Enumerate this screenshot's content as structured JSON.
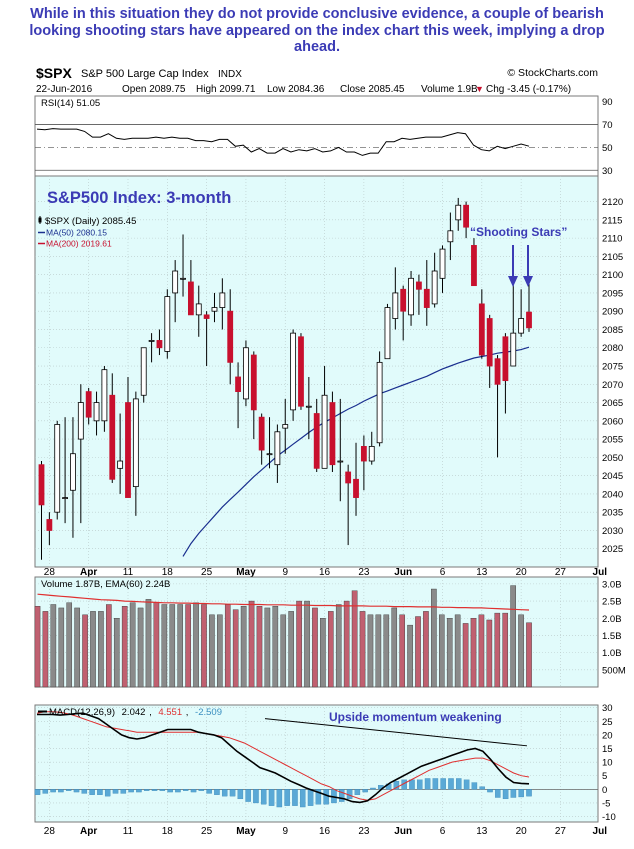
{
  "caption": "While in this situation they do not provide conclusive evidence, a couple of bearish looking shooting stars have appeared on the index chart this week, implying a drop ahead.",
  "header": {
    "symbol": "$SPX",
    "name": "S&P 500 Large Cap Index",
    "exchange": "INDX",
    "credit": "© StockCharts.com",
    "date": "22-Jun-2016",
    "open": "Open 2089.75",
    "high": "High 2099.71",
    "low": "Low 2084.36",
    "close": "Close 2085.45",
    "volume": "Volume 1.9B",
    "change": "Chg -3.45 (-0.17%)",
    "change_arrow": "▼"
  },
  "colors": {
    "panel_bg": "#e1fbfb",
    "grid": "#b8c8c8",
    "up": "#ffffff",
    "down": "#c8102e",
    "ma50": "#1a2f8f",
    "ma200": "#c8102e",
    "annotation": "#3b3bb5",
    "macd_line": "#000000",
    "signal_line": "#e03030",
    "histogram": "#5aa9d6",
    "volume_up": "#8a8a8a",
    "volume_down": "#c06070"
  },
  "chart_data": {
    "type": "candlestick",
    "title": "S&P500 Index: 3-month",
    "legend": [
      {
        "label": "$SPX (Daily) 2085.45",
        "color": "#000000",
        "icon": "candle-icon"
      },
      {
        "label": "MA(50) 2080.15",
        "color": "#1a2f8f",
        "icon": "line-icon"
      },
      {
        "label": "MA(200) 2019.61",
        "color": "#c8102e",
        "icon": "line-icon"
      }
    ],
    "annotations": {
      "price": "“Shooting Stars”",
      "macd": "Upside momentum weakening"
    },
    "x_labels": [
      "28",
      "Apr",
      "11",
      "18",
      "25",
      "May",
      "9",
      "16",
      "23",
      "Jun",
      "6",
      "13",
      "20",
      "27",
      "Jul"
    ],
    "bold_x_labels": [
      "Apr",
      "May",
      "Jun",
      "Jul"
    ],
    "price": {
      "ylim": [
        2020,
        2127
      ],
      "yticks": [
        2025,
        2030,
        2035,
        2040,
        2045,
        2050,
        2055,
        2060,
        2065,
        2070,
        2075,
        2080,
        2085,
        2090,
        2095,
        2100,
        2105,
        2110,
        2115,
        2120
      ],
      "candles": [
        {
          "d": "Mar 24",
          "o": 2048,
          "h": 2049,
          "l": 2022,
          "c": 2037
        },
        {
          "d": "Mar 28",
          "o": 2033,
          "h": 2035,
          "l": 2026,
          "c": 2030
        },
        {
          "d": "Mar 29",
          "o": 2035,
          "h": 2060,
          "l": 2033,
          "c": 2059
        },
        {
          "d": "Mar 30",
          "o": 2039,
          "h": 2061,
          "l": 2032,
          "c": 2039
        },
        {
          "d": "Mar 31",
          "o": 2041,
          "h": 2061,
          "l": 2028,
          "c": 2051
        },
        {
          "d": "Apr 1",
          "o": 2055,
          "h": 2070,
          "l": 2032,
          "c": 2065
        },
        {
          "d": "Apr 4",
          "o": 2068,
          "h": 2069,
          "l": 2059,
          "c": 2061
        },
        {
          "d": "Apr 5",
          "o": 2060,
          "h": 2068,
          "l": 2056,
          "c": 2065
        },
        {
          "d": "Apr 6",
          "o": 2060,
          "h": 2075,
          "l": 2057,
          "c": 2074
        },
        {
          "d": "Apr 7",
          "o": 2067,
          "h": 2073,
          "l": 2043,
          "c": 2044
        },
        {
          "d": "Apr 8",
          "o": 2047,
          "h": 2062,
          "l": 2040,
          "c": 2049
        },
        {
          "d": "Apr 11",
          "o": 2065,
          "h": 2072,
          "l": 2039,
          "c": 2039
        },
        {
          "d": "Apr 12",
          "o": 2042,
          "h": 2068,
          "l": 2034,
          "c": 2066
        },
        {
          "d": "Apr 13",
          "o": 2067,
          "h": 2080,
          "l": 2065,
          "c": 2080
        },
        {
          "d": "Apr 14",
          "o": 2082,
          "h": 2084,
          "l": 2076,
          "c": 2082
        },
        {
          "d": "Apr 15",
          "o": 2082,
          "h": 2085,
          "l": 2078,
          "c": 2080
        },
        {
          "d": "Apr 18",
          "o": 2079,
          "h": 2096,
          "l": 2077,
          "c": 2094
        },
        {
          "d": "Apr 19",
          "o": 2095,
          "h": 2104,
          "l": 2087,
          "c": 2101
        },
        {
          "d": "Apr 20",
          "o": 2099,
          "h": 2111,
          "l": 2094,
          "c": 2099
        },
        {
          "d": "Apr 21",
          "o": 2098,
          "h": 2104,
          "l": 2089,
          "c": 2089
        },
        {
          "d": "Apr 22",
          "o": 2089,
          "h": 2097,
          "l": 2083,
          "c": 2092
        },
        {
          "d": "Apr 25",
          "o": 2089,
          "h": 2090,
          "l": 2075,
          "c": 2088
        },
        {
          "d": "Apr 26",
          "o": 2090,
          "h": 2095,
          "l": 2087,
          "c": 2091
        },
        {
          "d": "Apr 27",
          "o": 2091,
          "h": 2099,
          "l": 2085,
          "c": 2095
        },
        {
          "d": "Apr 28",
          "o": 2090,
          "h": 2096,
          "l": 2070,
          "c": 2076
        },
        {
          "d": "Apr 29",
          "o": 2072,
          "h": 2076,
          "l": 2058,
          "c": 2068
        },
        {
          "d": "May 2",
          "o": 2066,
          "h": 2082,
          "l": 2064,
          "c": 2080
        },
        {
          "d": "May 3",
          "o": 2078,
          "h": 2079,
          "l": 2055,
          "c": 2063
        },
        {
          "d": "May 4",
          "o": 2061,
          "h": 2062,
          "l": 2048,
          "c": 2052
        },
        {
          "d": "May 5",
          "o": 2051,
          "h": 2061,
          "l": 2047,
          "c": 2051
        },
        {
          "d": "May 6",
          "o": 2048,
          "h": 2059,
          "l": 2043,
          "c": 2057
        },
        {
          "d": "May 9",
          "o": 2058,
          "h": 2066,
          "l": 2051,
          "c": 2059
        },
        {
          "d": "May 10",
          "o": 2063,
          "h": 2085,
          "l": 2060,
          "c": 2084
        },
        {
          "d": "May 11",
          "o": 2083,
          "h": 2084,
          "l": 2063,
          "c": 2064
        },
        {
          "d": "May 12",
          "o": 2064,
          "h": 2072,
          "l": 2055,
          "c": 2064
        },
        {
          "d": "May 13",
          "o": 2062,
          "h": 2066,
          "l": 2046,
          "c": 2047
        },
        {
          "d": "May 16",
          "o": 2047,
          "h": 2075,
          "l": 2047,
          "c": 2067
        },
        {
          "d": "May 17",
          "o": 2065,
          "h": 2068,
          "l": 2046,
          "c": 2048
        },
        {
          "d": "May 18",
          "o": 2049,
          "h": 2066,
          "l": 2038,
          "c": 2049
        },
        {
          "d": "May 19",
          "o": 2046,
          "h": 2048,
          "l": 2026,
          "c": 2043
        },
        {
          "d": "May 20",
          "o": 2044,
          "h": 2054,
          "l": 2034,
          "c": 2039
        },
        {
          "d": "May 23",
          "o": 2053,
          "h": 2056,
          "l": 2041,
          "c": 2049
        },
        {
          "d": "May 24",
          "o": 2049,
          "h": 2057,
          "l": 2048,
          "c": 2053
        },
        {
          "d": "May 25",
          "o": 2054,
          "h": 2079,
          "l": 2053,
          "c": 2076
        },
        {
          "d": "May 26",
          "o": 2077,
          "h": 2092,
          "l": 2077,
          "c": 2091
        },
        {
          "d": "May 27",
          "o": 2088,
          "h": 2102,
          "l": 2085,
          "c": 2095
        },
        {
          "d": "May 31",
          "o": 2096,
          "h": 2097,
          "l": 2082,
          "c": 2090
        },
        {
          "d": "Jun 1",
          "o": 2089,
          "h": 2101,
          "l": 2086,
          "c": 2099
        },
        {
          "d": "Jun 2",
          "o": 2098,
          "h": 2100,
          "l": 2089,
          "c": 2096
        },
        {
          "d": "Jun 3",
          "o": 2096,
          "h": 2104,
          "l": 2086,
          "c": 2091
        },
        {
          "d": "Jun 6",
          "o": 2092,
          "h": 2106,
          "l": 2091,
          "c": 2101
        },
        {
          "d": "Jun 7",
          "o": 2099,
          "h": 2108,
          "l": 2095,
          "c": 2107
        },
        {
          "d": "Jun 8",
          "o": 2109,
          "h": 2117,
          "l": 2104,
          "c": 2112
        },
        {
          "d": "Jun 9",
          "o": 2115,
          "h": 2121,
          "l": 2112,
          "c": 2119
        },
        {
          "d": "Jun 10",
          "o": 2119,
          "h": 2120,
          "l": 2110,
          "c": 2113
        },
        {
          "d": "Jun 13",
          "o": 2108,
          "h": 2110,
          "l": 2098,
          "c": 2097
        },
        {
          "d": "Jun 14",
          "o": 2092,
          "h": 2096,
          "l": 2077,
          "c": 2078
        },
        {
          "d": "Jun 15",
          "o": 2088,
          "h": 2089,
          "l": 2069,
          "c": 2075
        },
        {
          "d": "Jun 16",
          "o": 2077,
          "h": 2078,
          "l": 2050,
          "c": 2070
        },
        {
          "d": "Jun 17",
          "o": 2083,
          "h": 2084,
          "l": 2062,
          "c": 2071
        },
        {
          "d": "Jun 20",
          "o": 2075,
          "h": 2101,
          "l": 2075,
          "c": 2084
        },
        {
          "d": "Jun 21",
          "o": 2084,
          "h": 2096,
          "l": 2083,
          "c": 2088
        },
        {
          "d": "Jun 22",
          "o": 2089.75,
          "h": 2099.71,
          "l": 2084.36,
          "c": 2085.45
        }
      ],
      "ma50": [
        2022.9,
        2026.4,
        2029.2,
        2031.6,
        2034.0,
        2036.4,
        2038.5,
        2040.5,
        2042.6,
        2044.7,
        2046.6,
        2048.5,
        2050.4,
        2052.0,
        2053.6,
        2055.2,
        2056.8,
        2058.3,
        2059.6,
        2060.8,
        2062.0,
        2063.2,
        2064.2,
        2065.4,
        2066.4,
        2067.4,
        2068.2,
        2069.0,
        2069.8,
        2070.6,
        2071.4,
        2072.2,
        2073.2,
        2074.2,
        2075.0,
        2075.8,
        2076.5,
        2077.2,
        2077.6,
        2078.0,
        2078.5,
        2078.8,
        2079.1,
        2079.5,
        2080.15
      ],
      "ma50_start": 18
    },
    "rsi": {
      "label": "RSI(14) 51.05",
      "ylim": [
        25,
        95
      ],
      "yticks": [
        30,
        50,
        70,
        90
      ],
      "values": [
        66.0,
        65.5,
        66.5,
        66.0,
        66.0,
        66.0,
        64.0,
        59.0,
        59.0,
        62.0,
        58.0,
        57.0,
        58.0,
        58.0,
        58.0,
        59.0,
        58.0,
        59.0,
        58.0,
        58.0,
        56.0,
        56.0,
        55.0,
        57.0,
        57.0,
        51.0,
        52.0,
        46.0,
        49.0,
        45.0,
        45.0,
        49.0,
        46.0,
        48.0,
        47.0,
        49.0,
        46.0,
        47.0,
        50.0,
        46.0,
        46.0,
        43.0,
        45.0,
        45.0,
        55.0,
        55.0,
        58.0,
        57.0,
        58.0,
        59.0,
        59.0,
        59.0,
        61.0,
        63.0,
        62.0,
        52.0,
        48.0,
        47.0,
        51.0,
        49.0,
        51.0,
        53.0,
        51.05
      ]
    },
    "volume": {
      "label": "Volume 1.87B, EMA(60) 2.24B",
      "units": "billions",
      "ylim": [
        0,
        3.2
      ],
      "yticks": [
        "3.0B",
        "2.5B",
        "2.0B",
        "1.5B",
        "1.0B",
        "500M"
      ],
      "ytick_values": [
        3.0,
        2.5,
        2.0,
        1.5,
        1.0,
        0.5
      ],
      "values": [
        2.35,
        2.2,
        2.4,
        2.3,
        2.45,
        2.3,
        2.1,
        2.2,
        2.2,
        2.4,
        2.0,
        2.35,
        2.45,
        2.3,
        2.55,
        2.45,
        2.4,
        2.4,
        2.4,
        2.4,
        2.45,
        2.4,
        2.1,
        2.1,
        2.4,
        2.25,
        2.35,
        2.5,
        2.35,
        2.3,
        2.35,
        2.1,
        2.2,
        2.5,
        2.5,
        2.3,
        2.0,
        2.2,
        2.4,
        2.5,
        2.8,
        2.2,
        2.1,
        2.1,
        2.1,
        2.3,
        2.1,
        1.8,
        2.05,
        2.2,
        2.85,
        2.1,
        2.0,
        2.1,
        1.85,
        2.0,
        2.1,
        1.95,
        2.15,
        2.15,
        2.95,
        2.1,
        1.87
      ],
      "ema60": [
        2.7,
        2.68,
        2.66,
        2.64,
        2.62,
        2.6,
        2.58,
        2.56,
        2.54,
        2.53,
        2.52,
        2.5,
        2.49,
        2.48,
        2.47,
        2.46,
        2.45,
        2.45,
        2.44,
        2.44,
        2.43,
        2.43,
        2.42,
        2.42,
        2.41,
        2.41,
        2.4,
        2.4,
        2.4,
        2.39,
        2.39,
        2.39,
        2.38,
        2.38,
        2.38,
        2.37,
        2.37,
        2.37,
        2.36,
        2.36,
        2.36,
        2.36,
        2.35,
        2.35,
        2.35,
        2.34,
        2.34,
        2.34,
        2.33,
        2.33,
        2.33,
        2.32,
        2.32,
        2.31,
        2.31,
        2.3,
        2.3,
        2.29,
        2.28,
        2.27,
        2.26,
        2.25,
        2.24
      ]
    },
    "macd": {
      "label": "MACD(12,26,9)",
      "values_text": [
        "2.042",
        "4.551",
        "-2.509"
      ],
      "ylim": [
        -12,
        31
      ],
      "yticks": [
        -10,
        -5,
        0,
        5,
        10,
        15,
        20,
        25,
        30
      ],
      "macd": [
        27.5,
        27.5,
        27.5,
        27.3,
        27.5,
        27.8,
        28.0,
        27.0,
        26.0,
        24.0,
        22.0,
        20.0,
        19.0,
        18.5,
        19.0,
        20.0,
        21.0,
        22.0,
        22.0,
        22.0,
        22.0,
        21.0,
        20.5,
        20.0,
        19.0,
        16.5,
        14.0,
        12.0,
        10.0,
        8.0,
        7.0,
        6.0,
        4.5,
        3.0,
        1.8,
        0.5,
        -0.5,
        -1.5,
        -2.5,
        -3.0,
        -3.5,
        -4.5,
        -4.8,
        -4.2,
        -2.0,
        0.5,
        2.5,
        4.0,
        5.5,
        7.0,
        8.5,
        9.5,
        10.5,
        11.5,
        12.5,
        13.5,
        14.5,
        15.0,
        14.0,
        11.0,
        7.5,
        4.5,
        2.5,
        2.2,
        2.042
      ],
      "signal": [
        28.0,
        28.5,
        28.5,
        28.3,
        27.8,
        27.0,
        26.0,
        25.0,
        24.0,
        23.0,
        22.5,
        22.0,
        21.5,
        21.0,
        21.0,
        21.0,
        21.0,
        21.0,
        21.0,
        21.0,
        21.0,
        21.0,
        20.5,
        20.0,
        19.5,
        19.0,
        18.0,
        17.0,
        15.5,
        14.0,
        12.5,
        11.0,
        9.5,
        8.0,
        6.5,
        5.0,
        3.5,
        2.0,
        1.0,
        -0.5,
        -1.5,
        -2.5,
        -3.5,
        -4.0,
        -3.5,
        -2.0,
        -0.5,
        1.0,
        2.5,
        4.0,
        5.5,
        7.0,
        8.0,
        9.0,
        10.0,
        10.5,
        11.0,
        11.5,
        11.5,
        10.5,
        9.0,
        7.5,
        6.0,
        5.0,
        4.551
      ],
      "histogram": [
        -2.0,
        -1.5,
        -1.0,
        -1.0,
        -0.5,
        -1.0,
        -1.5,
        -2.0,
        -2.0,
        -2.5,
        -1.5,
        -1.5,
        -1.0,
        -1.0,
        -0.5,
        -0.5,
        -0.5,
        -1.0,
        -1.0,
        -0.5,
        -1.0,
        -0.5,
        -1.5,
        -2.0,
        -2.5,
        -2.5,
        -3.5,
        -4.5,
        -5.0,
        -5.5,
        -6.0,
        -6.5,
        -6.0,
        -6.0,
        -6.5,
        -6.0,
        -5.5,
        -5.5,
        -5.0,
        -4.5,
        -3.5,
        -2.0,
        -1.0,
        0.5,
        1.5,
        2.0,
        3.0,
        3.5,
        3.5,
        3.5,
        4.0,
        4.0,
        4.0,
        4.0,
        4.0,
        3.5,
        2.5,
        1.0,
        -1.0,
        -3.0,
        -3.5,
        -3.0,
        -2.8,
        -2.509
      ],
      "trendline": [
        26.0,
        16.0
      ]
    }
  }
}
